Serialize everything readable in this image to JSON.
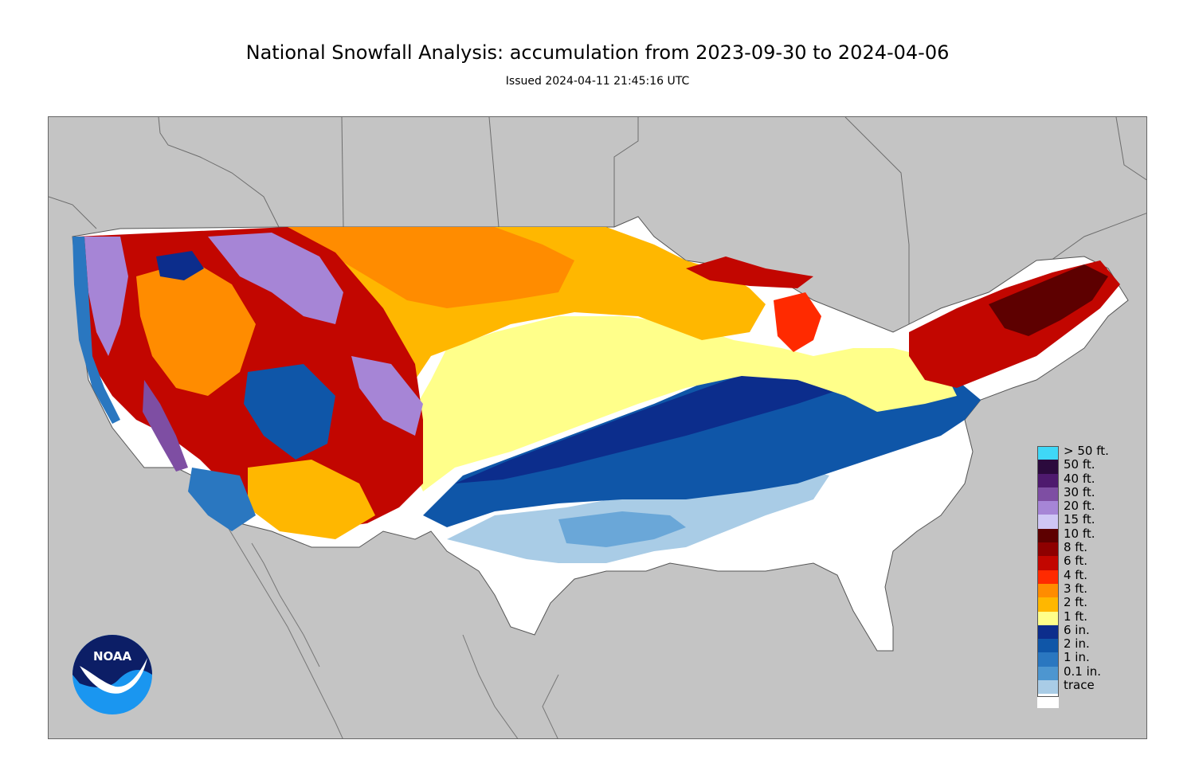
{
  "header": {
    "title": "National Snowfall Analysis: accumulation from 2023-09-30 to 2024-04-06",
    "issued": "Issued 2024-04-11 21:45:16 UTC"
  },
  "legend": {
    "items": [
      {
        "label": "> 50 ft.",
        "color": "#3fd8f7"
      },
      {
        "label": "50 ft.",
        "color": "#2b0a3d"
      },
      {
        "label": "40 ft.",
        "color": "#4e1a6e"
      },
      {
        "label": "30 ft.",
        "color": "#7e4ea3"
      },
      {
        "label": "20 ft.",
        "color": "#a685d6"
      },
      {
        "label": "15 ft.",
        "color": "#cfc6f5"
      },
      {
        "label": "10 ft.",
        "color": "#5d0000"
      },
      {
        "label": "8 ft.",
        "color": "#8e0000"
      },
      {
        "label": "6 ft.",
        "color": "#c20600"
      },
      {
        "label": "4 ft.",
        "color": "#ff2a00"
      },
      {
        "label": "3 ft.",
        "color": "#ff8c00"
      },
      {
        "label": "2 ft.",
        "color": "#ffb700"
      },
      {
        "label": "1 ft.",
        "color": "#ffff8a"
      },
      {
        "label": "6 in.",
        "color": "#0c2d8c"
      },
      {
        "label": "2 in.",
        "color": "#0f56a8"
      },
      {
        "label": "1 in.",
        "color": "#2a77c0"
      },
      {
        "label": "0.1 in.",
        "color": "#4d96d0"
      },
      {
        "label": "trace",
        "color": "#a9cce6"
      },
      {
        "label": "",
        "color": "#ffffff"
      }
    ]
  },
  "logo": {
    "text": "NOAA"
  },
  "map": {
    "background_color": "#c4c4c4",
    "icon": "conus-snowfall-map"
  }
}
